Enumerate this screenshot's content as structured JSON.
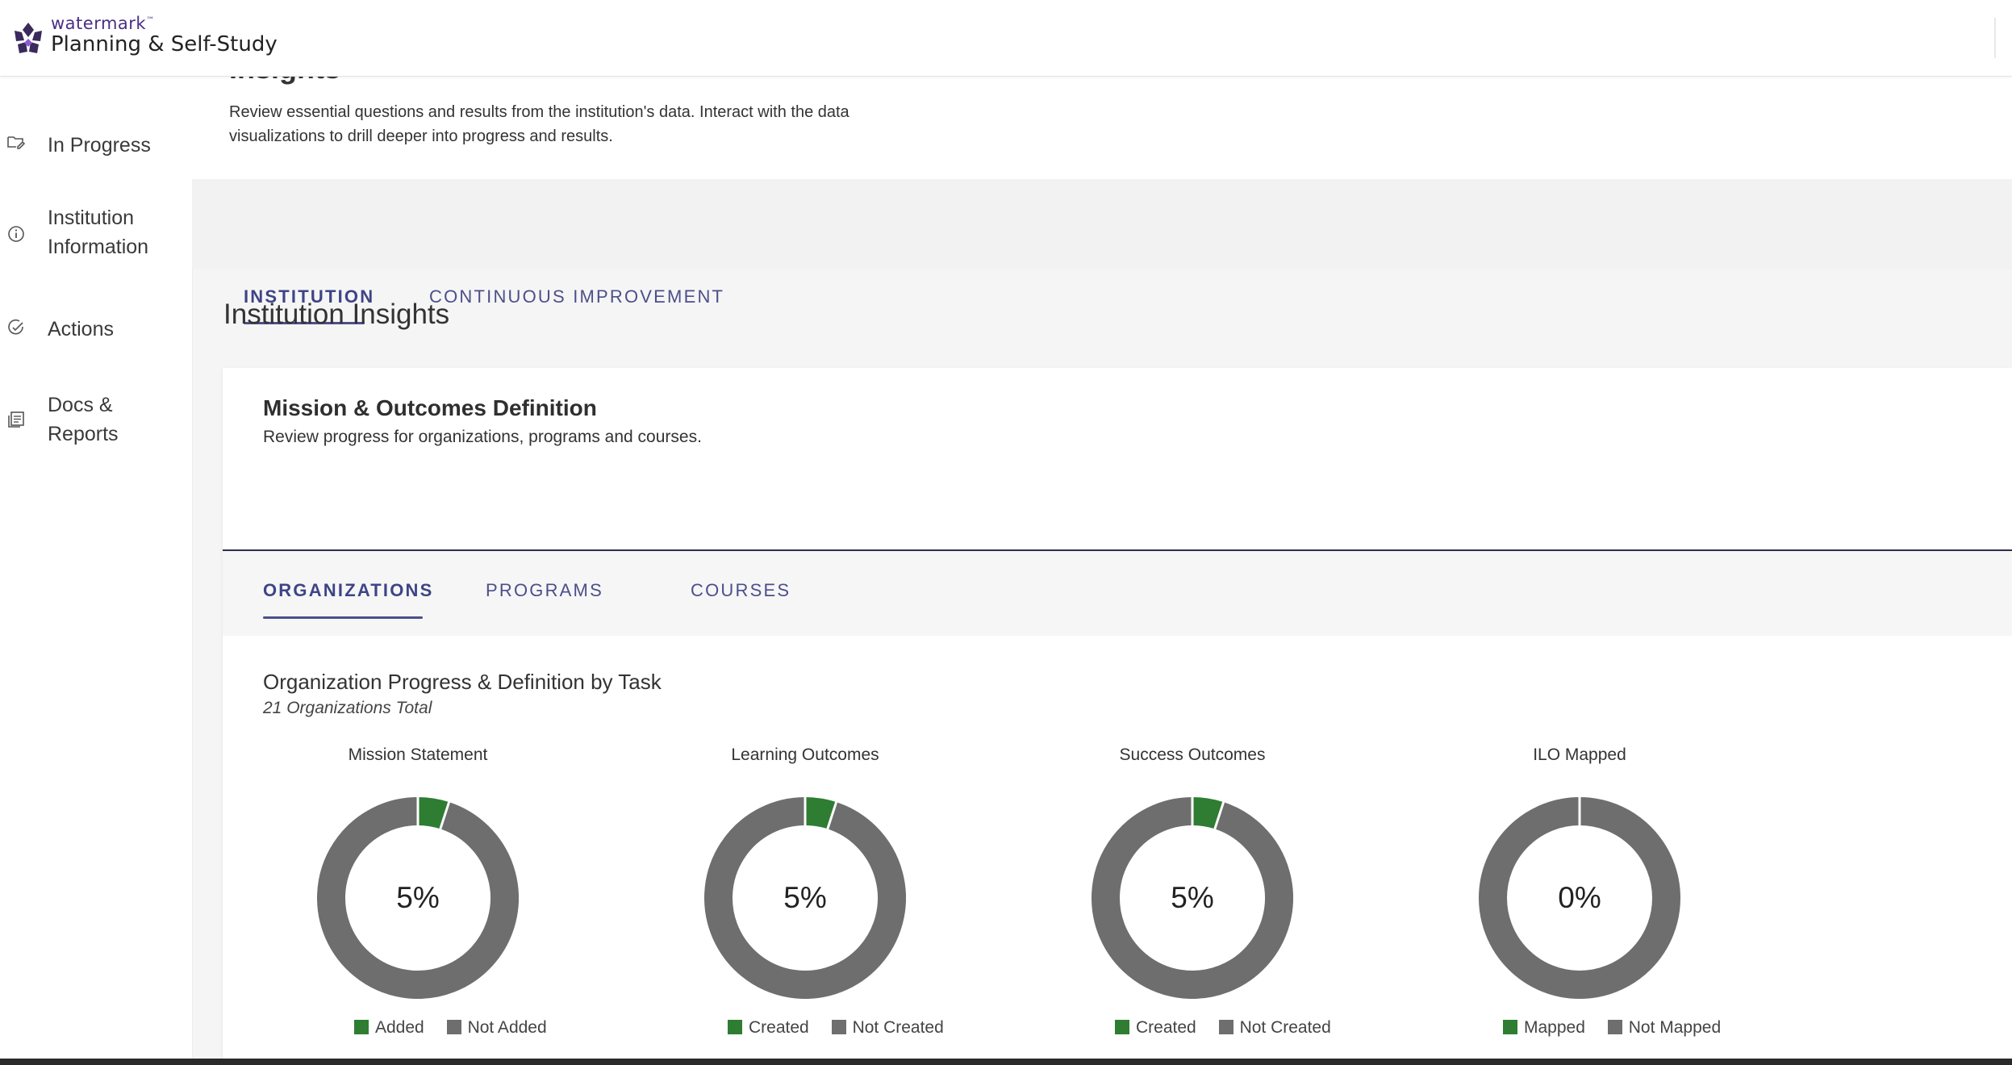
{
  "header": {
    "brand_small": "watermark",
    "brand_tm": "™",
    "brand_product": "Planning & Self-Study",
    "logo_icon": "watermark-logo-icon"
  },
  "sidebar": {
    "items": [
      {
        "label": "In Progress",
        "icon": "folder-edit-icon"
      },
      {
        "label": "Institution Information",
        "icon": "info-circle-icon"
      },
      {
        "label": "Actions",
        "icon": "check-circle-icon"
      },
      {
        "label": "Docs & Reports",
        "icon": "document-list-icon"
      }
    ]
  },
  "page": {
    "title": "Insights",
    "description": "Review essential questions and results from the institution's data. Interact with the data visualizations to drill deeper into progress and results."
  },
  "top_tabs": [
    {
      "label": "INSTITUTION",
      "active": true
    },
    {
      "label": "CONTINUOUS IMPROVEMENT",
      "active": false
    }
  ],
  "section_title": "Institution Insights",
  "card": {
    "title": "Mission & Outcomes Definition",
    "subtitle": "Review progress for organizations, programs and courses.",
    "tabs": [
      {
        "label": "ORGANIZATIONS",
        "active": true
      },
      {
        "label": "PROGRAMS",
        "active": false
      },
      {
        "label": "COURSES",
        "active": false
      }
    ],
    "chart_section_title": "Organization Progress & Definition by Task",
    "chart_section_subtitle": "21 Organizations Total"
  },
  "colors": {
    "positive": "#2e7d32",
    "negative": "#6e6e6e",
    "accent": "#4b4f8a"
  },
  "chart_data": [
    {
      "type": "pie",
      "title": "Mission Statement",
      "center_label": "5%",
      "labels": [
        "Added",
        "Not Added"
      ],
      "values": [
        5,
        95
      ]
    },
    {
      "type": "pie",
      "title": "Learning Outcomes",
      "center_label": "5%",
      "labels": [
        "Created",
        "Not Created"
      ],
      "values": [
        5,
        95
      ]
    },
    {
      "type": "pie",
      "title": "Success Outcomes",
      "center_label": "5%",
      "labels": [
        "Created",
        "Not Created"
      ],
      "values": [
        5,
        95
      ]
    },
    {
      "type": "pie",
      "title": "ILO Mapped",
      "center_label": "0%",
      "labels": [
        "Mapped",
        "Not Mapped"
      ],
      "values": [
        0,
        100
      ]
    }
  ]
}
